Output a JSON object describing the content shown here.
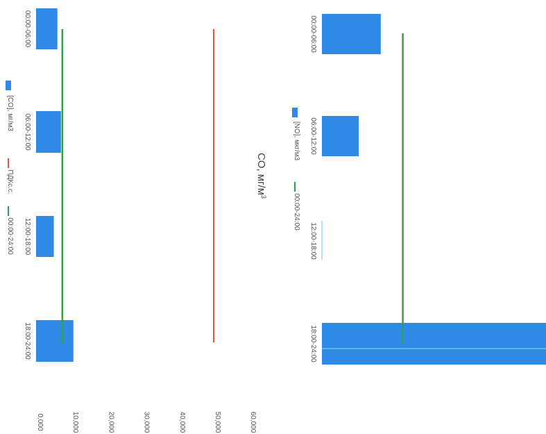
{
  "chart_data": [
    {
      "type": "bar",
      "categories": [
        "00:00-06:00",
        "06:00-12:00",
        "12:00-18:00",
        "18:00-24:00"
      ],
      "series": [
        {
          "name": "[CO], мг/м3",
          "values": [
            6.0,
            7.0,
            5.0,
            10.5
          ],
          "color": "#2e8ae6"
        },
        {
          "name": "ПДКс.с.",
          "values": [
            50.0,
            50.0,
            50.0,
            50.0
          ],
          "color": "#e8504a",
          "type": "line"
        },
        {
          "name": "00:00-24:00",
          "values": [
            7.0,
            7.0,
            7.0,
            7.0
          ],
          "color": "#2aa34a",
          "type": "line"
        }
      ],
      "ticks": [
        "0,000",
        "10,000",
        "20,000",
        "30,000",
        "40,000",
        "50,000",
        "60,000"
      ],
      "ylim": [
        0,
        60
      ],
      "orientation": "rotated 90° clockwise"
    },
    {
      "type": "bar",
      "title": "CO, мг/м",
      "title_sup": "3",
      "categories": [
        "00:00-06:00",
        "06:00-12:00",
        "12:00-18:00",
        "18:00-24:00"
      ],
      "series": [
        {
          "name": "[NO], мкг/м3",
          "values": [
            16.0,
            10.0,
            0.0,
            61.0
          ],
          "color": "#2e8ae6"
        },
        {
          "name": "00:00-24:00",
          "values": [
            22.0,
            22.0,
            22.0,
            22.0
          ],
          "color": "#2aa34a",
          "type": "line"
        }
      ],
      "ylim": [
        0,
        60
      ],
      "orientation": "rotated 90° clockwise"
    }
  ],
  "extra_legend_label": "12:00-18:00"
}
